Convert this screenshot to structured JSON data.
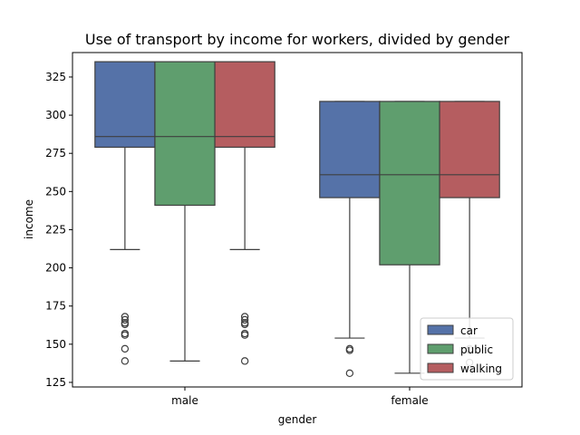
{
  "chart_data": {
    "type": "box",
    "title": "Use of transport by income for workers, divided by gender",
    "xlabel": "gender",
    "ylabel": "income",
    "categories": [
      "male",
      "female"
    ],
    "ylim": [
      122,
      341
    ],
    "yticks": [
      125,
      150,
      175,
      200,
      225,
      250,
      275,
      300,
      325
    ],
    "grid": false,
    "legend_position": "lower-right",
    "series": [
      {
        "name": "car",
        "color": "#5572a8",
        "boxes": [
          {
            "category": "male",
            "whisker_low": 212,
            "q1": 279,
            "median": 286,
            "q3": 335,
            "whisker_high": 335,
            "outliers": [
              168,
              166,
              164,
              163,
              157,
              156,
              147,
              139
            ]
          },
          {
            "category": "female",
            "whisker_low": 154,
            "q1": 246,
            "median": 261,
            "q3": 309,
            "whisker_high": 309,
            "outliers": [
              147,
              146,
              131
            ]
          }
        ]
      },
      {
        "name": "public",
        "color": "#5f9e6e",
        "boxes": [
          {
            "category": "male",
            "whisker_low": 139,
            "q1": 241,
            "median": 286,
            "q3": 335,
            "whisker_high": 335,
            "outliers": []
          },
          {
            "category": "female",
            "whisker_low": 131,
            "q1": 202,
            "median": 261,
            "q3": 309,
            "whisker_high": 309,
            "outliers": []
          }
        ]
      },
      {
        "name": "walking",
        "color": "#b55d60",
        "boxes": [
          {
            "category": "male",
            "whisker_low": 212,
            "q1": 279,
            "median": 286,
            "q3": 335,
            "whisker_high": 335,
            "outliers": [
              168,
              166,
              164,
              163,
              157,
              156,
              139
            ]
          },
          {
            "category": "female",
            "whisker_low": 154,
            "q1": 246,
            "median": 261,
            "q3": 309,
            "whisker_high": 309,
            "outliers": [
              147,
              146,
              138
            ]
          }
        ]
      }
    ]
  }
}
